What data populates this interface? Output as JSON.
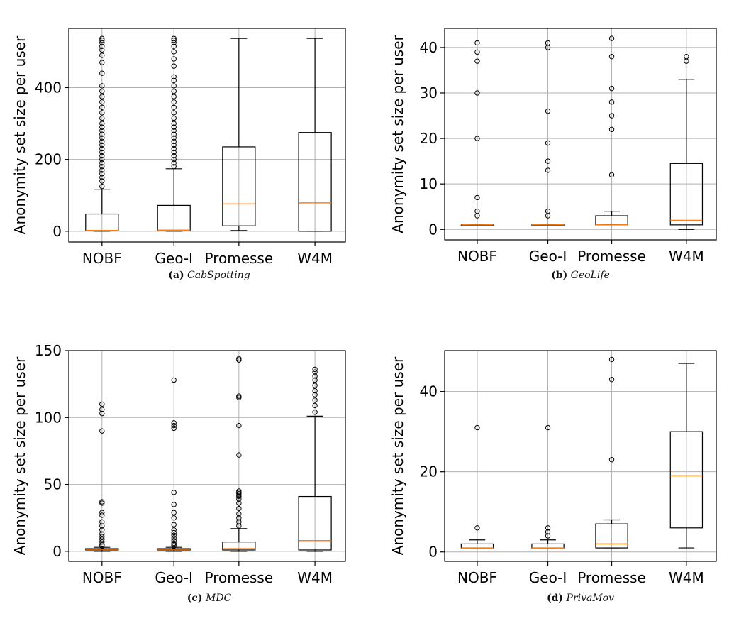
{
  "chart_data": [
    {
      "type": "box",
      "ylabel": "Anonymity set size per user",
      "caption_label": "(a)",
      "caption_name": "CabSpotting",
      "categories": [
        "NOBF",
        "Geo-I",
        "Promesse",
        "W4M"
      ],
      "ylim": [
        -30,
        565
      ],
      "yticks": [
        0,
        200,
        400
      ],
      "grid": true,
      "boxes": [
        {
          "min": 0,
          "q1": 1,
          "median": 2,
          "q3": 48,
          "max": 117,
          "outliers": [
            125,
            140,
            150,
            160,
            170,
            180,
            190,
            200,
            210,
            220,
            230,
            240,
            250,
            260,
            270,
            280,
            290,
            300,
            315,
            330,
            345,
            360,
            375,
            390,
            405,
            440,
            470,
            490,
            505,
            515,
            525,
            532,
            537
          ]
        },
        {
          "min": 0,
          "q1": 1,
          "median": 3,
          "q3": 72,
          "max": 174,
          "outliers": [
            180,
            190,
            200,
            210,
            220,
            230,
            240,
            250,
            260,
            270,
            280,
            290,
            300,
            315,
            330,
            345,
            360,
            375,
            390,
            405,
            420,
            430,
            460,
            480,
            500,
            515,
            525,
            532,
            537
          ]
        },
        {
          "min": 2,
          "q1": 15,
          "median": 76,
          "q3": 235,
          "max": 537,
          "outliers": []
        },
        {
          "min": 0,
          "q1": 0,
          "median": 79,
          "q3": 275,
          "max": 537,
          "outliers": []
        }
      ]
    },
    {
      "type": "box",
      "ylabel": "Anonymity set size per user",
      "caption_label": "(b)",
      "caption_name": "GeoLife",
      "categories": [
        "NOBF",
        "Geo-I",
        "Promesse",
        "W4M"
      ],
      "ylim": [
        -2.3,
        44.2
      ],
      "yticks": [
        0,
        10,
        20,
        30,
        40
      ],
      "grid": true,
      "boxes": [
        {
          "min": 1,
          "q1": 1,
          "median": 1,
          "q3": 1,
          "max": 1,
          "outliers": [
            3,
            4,
            7,
            20,
            30,
            37,
            39,
            41
          ]
        },
        {
          "min": 1,
          "q1": 1,
          "median": 1,
          "q3": 1,
          "max": 1,
          "outliers": [
            3,
            4,
            13,
            15,
            19,
            26,
            40,
            41
          ]
        },
        {
          "min": 1,
          "q1": 1,
          "median": 1,
          "q3": 3,
          "max": 4,
          "outliers": [
            12,
            22,
            25,
            28,
            31,
            38,
            42
          ]
        },
        {
          "min": 0,
          "q1": 1,
          "median": 2,
          "q3": 14.5,
          "max": 33,
          "outliers": [
            37,
            38
          ]
        }
      ]
    },
    {
      "type": "box",
      "ylabel": "Anonymity set size per user",
      "caption_label": "(c)",
      "caption_name": "MDC",
      "categories": [
        "NOBF",
        "Geo-I",
        "Promesse",
        "W4M"
      ],
      "ylim": [
        -7.5,
        150
      ],
      "yticks": [
        0,
        50,
        100,
        150
      ],
      "grid": true,
      "boxes": [
        {
          "min": 0,
          "q1": 1,
          "median": 1.5,
          "q3": 2,
          "max": 3,
          "outliers": [
            4,
            5,
            7,
            9,
            11,
            13,
            16,
            19,
            22,
            27,
            29,
            36,
            37,
            90,
            103,
            106,
            110
          ]
        },
        {
          "min": 0,
          "q1": 1,
          "median": 1.5,
          "q3": 2,
          "max": 3,
          "outliers": [
            4,
            5,
            6,
            8,
            10,
            12,
            14,
            16,
            20,
            25,
            29,
            35,
            44,
            92,
            94,
            96,
            128
          ]
        },
        {
          "min": 0,
          "q1": 1,
          "median": 2,
          "q3": 7,
          "max": 17,
          "outliers": [
            19,
            22,
            25,
            28,
            32,
            36,
            39,
            41,
            42,
            43,
            44,
            45,
            72,
            94,
            115,
            116,
            143,
            144
          ]
        },
        {
          "min": 0,
          "q1": 1,
          "median": 8,
          "q3": 41,
          "max": 101,
          "outliers": [
            104,
            109,
            113,
            117,
            120,
            124,
            128,
            131,
            134,
            136
          ]
        }
      ]
    },
    {
      "type": "box",
      "ylabel": "Anonymity set size per user",
      "caption_label": "(d)",
      "caption_name": "PrivaMov",
      "categories": [
        "NOBF",
        "Geo-I",
        "Promesse",
        "W4M"
      ],
      "ylim": [
        -2.35,
        50.2
      ],
      "yticks": [
        0,
        20,
        40
      ],
      "grid": true,
      "boxes": [
        {
          "min": 1,
          "q1": 1,
          "median": 1,
          "q3": 2,
          "max": 3,
          "outliers": [
            6,
            31
          ]
        },
        {
          "min": 1,
          "q1": 1,
          "median": 1,
          "q3": 2,
          "max": 3,
          "outliers": [
            4,
            5,
            6,
            31
          ]
        },
        {
          "min": 1,
          "q1": 1,
          "median": 2,
          "q3": 7,
          "max": 8,
          "outliers": [
            23,
            43,
            48
          ]
        },
        {
          "min": 1,
          "q1": 6,
          "median": 19,
          "q3": 30,
          "max": 47,
          "outliers": []
        }
      ]
    }
  ],
  "colors": {
    "median": "#ff7f0e",
    "grid": "#b0b0b0",
    "box": "#000000",
    "background": "#ffffff"
  }
}
